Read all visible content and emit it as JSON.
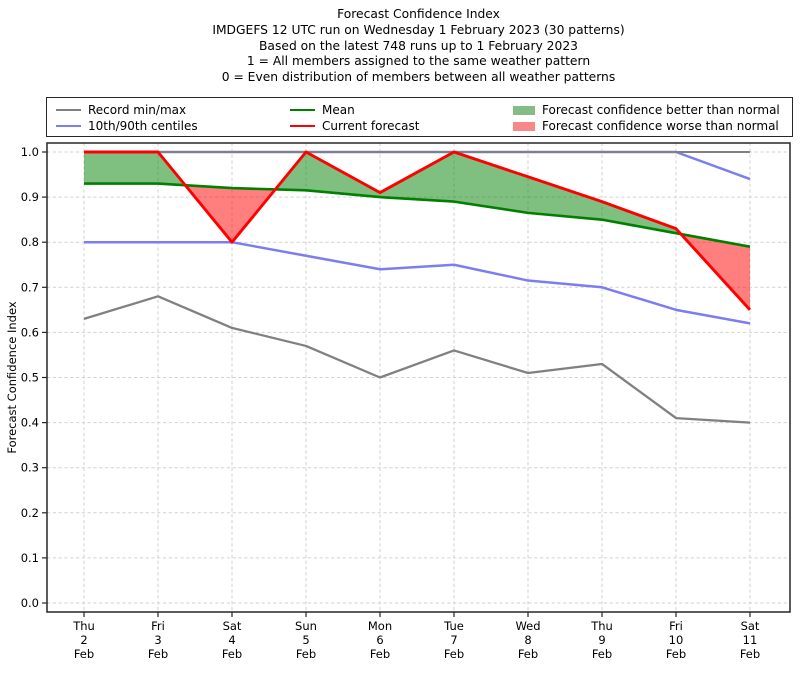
{
  "title_lines": [
    "Forecast Confidence Index",
    "IMDGEFS 12 UTC run on Wednesday 1 February 2023 (30 patterns)",
    "Based on the latest 748 runs up to 1 February 2023",
    "1 = All members assigned to the same weather pattern",
    "0 = Even distribution of members between all weather patterns"
  ],
  "legend": {
    "entries": [
      {
        "label": "Record min/max",
        "swatch": "line",
        "color": "#808080"
      },
      {
        "label": "10th/90th centiles",
        "swatch": "line",
        "color": "#7d7df2"
      },
      {
        "label": "Mean",
        "swatch": "line",
        "color": "#008000"
      },
      {
        "label": "Current forecast",
        "swatch": "line",
        "color": "#ff0000"
      },
      {
        "label": "Forecast confidence better than normal",
        "swatch": "fill",
        "color": "#85bb85"
      },
      {
        "label": "Forecast confidence worse than normal",
        "swatch": "fill",
        "color": "#f88888"
      }
    ]
  },
  "chart_data": {
    "type": "line",
    "title": "Forecast Confidence Index",
    "ylabel": "Forecast Confidence Index",
    "xlabel": "",
    "ylim": [
      0.0,
      1.0
    ],
    "ytick_step": 0.1,
    "grid": true,
    "grid_style": "dashed",
    "legend_position": "top",
    "yticks": [
      "0.0",
      "0.1",
      "0.2",
      "0.3",
      "0.4",
      "0.5",
      "0.6",
      "0.7",
      "0.8",
      "0.9",
      "1.0"
    ],
    "categories": [
      "Thu 2 Feb",
      "Fri 3 Feb",
      "Sat 4 Feb",
      "Sun 5 Feb",
      "Mon 6 Feb",
      "Tue 7 Feb",
      "Wed 8 Feb",
      "Thu 9 Feb",
      "Fri 10 Feb",
      "Sat 11 Feb"
    ],
    "xtick_lines": [
      [
        "Thu",
        "2",
        "Feb"
      ],
      [
        "Fri",
        "3",
        "Feb"
      ],
      [
        "Sat",
        "4",
        "Feb"
      ],
      [
        "Sun",
        "5",
        "Feb"
      ],
      [
        "Mon",
        "6",
        "Feb"
      ],
      [
        "Tue",
        "7",
        "Feb"
      ],
      [
        "Wed",
        "8",
        "Feb"
      ],
      [
        "Thu",
        "9",
        "Feb"
      ],
      [
        "Fri",
        "10",
        "Feb"
      ],
      [
        "Sat",
        "11",
        "Feb"
      ]
    ],
    "series": [
      {
        "key": "record_max",
        "name": "Record max",
        "color": "#808080",
        "values": [
          1.0,
          1.0,
          1.0,
          1.0,
          1.0,
          1.0,
          1.0,
          1.0,
          1.0,
          1.0
        ]
      },
      {
        "key": "record_min",
        "name": "Record min",
        "color": "#808080",
        "values": [
          0.63,
          0.68,
          0.61,
          0.57,
          0.5,
          0.56,
          0.51,
          0.53,
          0.41,
          0.4
        ]
      },
      {
        "key": "centile_90",
        "name": "90th centile",
        "color": "#7d7df2",
        "values": [
          1.0,
          1.0,
          1.0,
          1.0,
          1.0,
          1.0,
          1.0,
          1.0,
          1.0,
          0.94
        ]
      },
      {
        "key": "centile_10",
        "name": "10th centile",
        "color": "#7d7df2",
        "values": [
          0.8,
          0.8,
          0.8,
          0.77,
          0.74,
          0.75,
          0.715,
          0.7,
          0.65,
          0.62
        ]
      },
      {
        "key": "mean",
        "name": "Mean",
        "color": "#008000",
        "values": [
          0.93,
          0.93,
          0.92,
          0.915,
          0.9,
          0.89,
          0.865,
          0.85,
          0.82,
          0.79
        ]
      },
      {
        "key": "current",
        "name": "Current forecast",
        "color": "#ff0000",
        "values": [
          1.0,
          1.0,
          0.8,
          1.0,
          0.91,
          1.0,
          0.945,
          0.89,
          0.83,
          0.65
        ]
      }
    ],
    "fills": {
      "between": [
        "current",
        "mean"
      ],
      "better_color": "#008000",
      "worse_color": "#ff0000",
      "opacity": 0.5,
      "better_label": "Forecast confidence better than normal",
      "worse_label": "Forecast confidence worse than normal"
    }
  }
}
